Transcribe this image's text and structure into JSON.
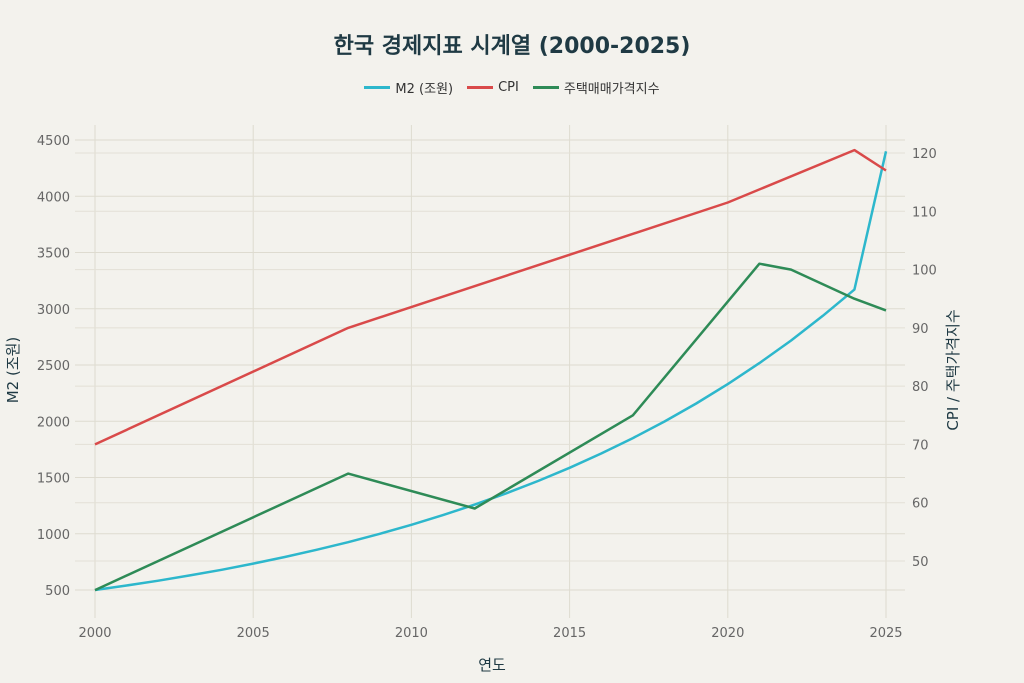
{
  "chart_data": {
    "type": "line",
    "title": "한국 경제지표 시계열 (2000-2025)",
    "xlabel": "연도",
    "ylabel": "M2 (조원)",
    "y2label": "CPI / 주택가격지수",
    "xlim": [
      1999.4,
      2025.5
    ],
    "ylim": [
      200,
      4620
    ],
    "y2lim": [
      44,
      123
    ],
    "xticks": [
      2000,
      2005,
      2010,
      2015,
      2020,
      2025
    ],
    "yticks": [
      500,
      1000,
      1500,
      2000,
      2500,
      3000,
      3500,
      4000,
      4500
    ],
    "y2ticks": [
      50,
      60,
      70,
      80,
      90,
      100,
      110,
      120
    ],
    "grid": true,
    "legend_position": "top-center",
    "series": [
      {
        "name": "M2 (조원)",
        "axis": "left",
        "color": "#2db7cc",
        "x": [
          2000,
          2001,
          2002,
          2003,
          2004,
          2005,
          2006,
          2007,
          2008,
          2009,
          2010,
          2011,
          2012,
          2013,
          2014,
          2015,
          2016,
          2017,
          2018,
          2019,
          2020,
          2021,
          2022,
          2023,
          2024,
          2025
        ],
        "y": [
          500,
          540,
          583,
          630,
          680,
          735,
          793,
          857,
          925,
          1000,
          1080,
          1166,
          1259,
          1360,
          1469,
          1586,
          1713,
          1850,
          1998,
          2158,
          2330,
          2517,
          2718,
          2936,
          3170,
          4400
        ]
      },
      {
        "name": "CPI",
        "axis": "right",
        "color": "#d94a4a",
        "x": [
          2000,
          2008,
          2020,
          2024,
          2025
        ],
        "y": [
          70,
          90,
          111.5,
          120.5,
          117
        ]
      },
      {
        "name": "주택매매가격지수",
        "axis": "right",
        "color": "#2e8b57",
        "x": [
          2000,
          2008,
          2012,
          2017,
          2021,
          2022,
          2024,
          2025
        ],
        "y": [
          45,
          65,
          59,
          75,
          101,
          100,
          95,
          93
        ]
      }
    ]
  }
}
